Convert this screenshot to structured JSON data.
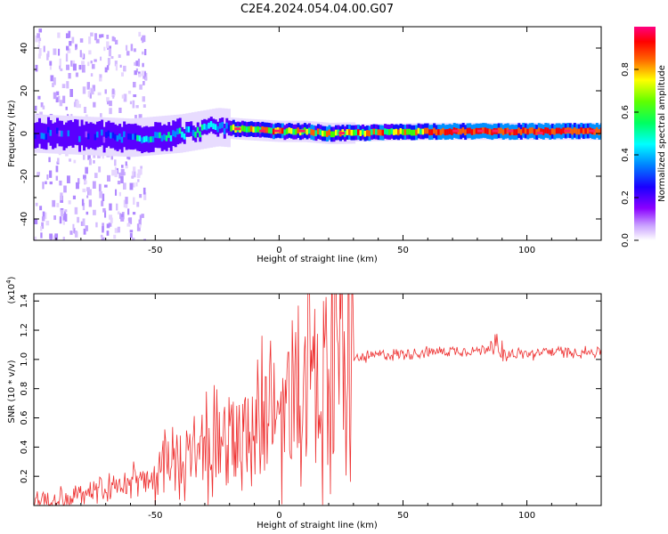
{
  "title": "C2E4.2024.054.04.00.G07",
  "chart_data": [
    {
      "type": "heatmap",
      "xlabel": "Height of straight line (km)",
      "ylabel": "Frequency (Hz)",
      "xlim": [
        -99,
        130
      ],
      "ylim": [
        -50,
        50
      ],
      "xticks": [
        -50,
        0,
        50,
        100
      ],
      "yticks": [
        -40,
        -20,
        0,
        20,
        40
      ],
      "colorbar": {
        "label": "Normalized spectral amplitude",
        "range": [
          0,
          1
        ],
        "ticks": [
          "0.0",
          "0.2",
          "0.4",
          "0.6",
          "0.8"
        ],
        "colormap": [
          "#ffffff",
          "#8a00ff",
          "#0000ff",
          "#00ffff",
          "#00ff00",
          "#ffff00",
          "#ff0000",
          "#ff0080"
        ]
      },
      "ridge": {
        "description_x": [
          -99,
          -80,
          -60,
          -40,
          -25,
          -15,
          0,
          10,
          20,
          40,
          60,
          80,
          100,
          130
        ],
        "center_freq": [
          0,
          -1,
          -2,
          0,
          3,
          2,
          1,
          1,
          0,
          0.5,
          1,
          1,
          1,
          1
        ]
      }
    },
    {
      "type": "line",
      "xlabel": "Height of straight line (km)",
      "ylabel": "SNR (10 * v/v)",
      "y_multiplier": "(x10⁴)",
      "xlim": [
        -99,
        130
      ],
      "ylim": [
        0,
        1.45
      ],
      "xticks": [
        -50,
        0,
        50,
        100
      ],
      "yticks": [
        "0.2",
        "0.4",
        "0.6",
        "0.8",
        "1.0",
        "1.2",
        "1.4"
      ],
      "series": [
        {
          "name": "SNR",
          "color": "#ee3030",
          "x": [
            -99,
            -90,
            -80,
            -70,
            -60,
            -55,
            -50,
            -45,
            -40,
            -35,
            -30,
            -25,
            -20,
            -15,
            -10,
            -5,
            0,
            5,
            10,
            12,
            15,
            20,
            25,
            30,
            40,
            50,
            60,
            70,
            80,
            85,
            88,
            90,
            100,
            105,
            107,
            110,
            120,
            130
          ],
          "values": [
            0.01,
            0.03,
            0.07,
            0.09,
            0.13,
            0.18,
            0.22,
            0.25,
            0.28,
            0.32,
            0.35,
            0.38,
            0.42,
            0.45,
            0.55,
            0.62,
            0.66,
            0.7,
            0.8,
            0.72,
            0.78,
            0.88,
            0.95,
            1.0,
            1.03,
            1.04,
            1.05,
            1.06,
            1.06,
            1.08,
            1.05,
            1.03,
            1.04,
            1.03,
            1.07,
            1.05,
            1.05,
            1.05
          ]
        }
      ]
    }
  ]
}
